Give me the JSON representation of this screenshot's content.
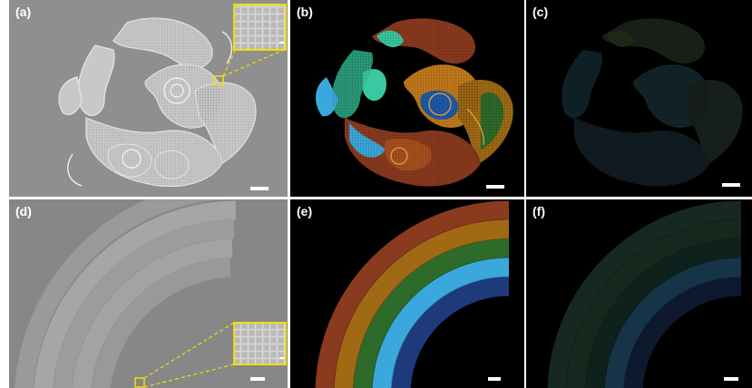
{
  "panels": [
    {
      "label": "(a)",
      "style": "grayscale"
    },
    {
      "label": "(b)",
      "style": "color"
    },
    {
      "label": "(c)",
      "style": "dim"
    },
    {
      "label": "(d)",
      "style": "grayscale"
    },
    {
      "label": "(e)",
      "style": "color"
    },
    {
      "label": "(f)",
      "style": "dim"
    }
  ],
  "colors": {
    "inset_border": "#f0e000",
    "scale_bar": "#ffffff",
    "rainbow_bands": [
      "#8a3a1e",
      "#a06a14",
      "#2e6a2a",
      "#3aa8dc",
      "#1e3a7a"
    ]
  }
}
